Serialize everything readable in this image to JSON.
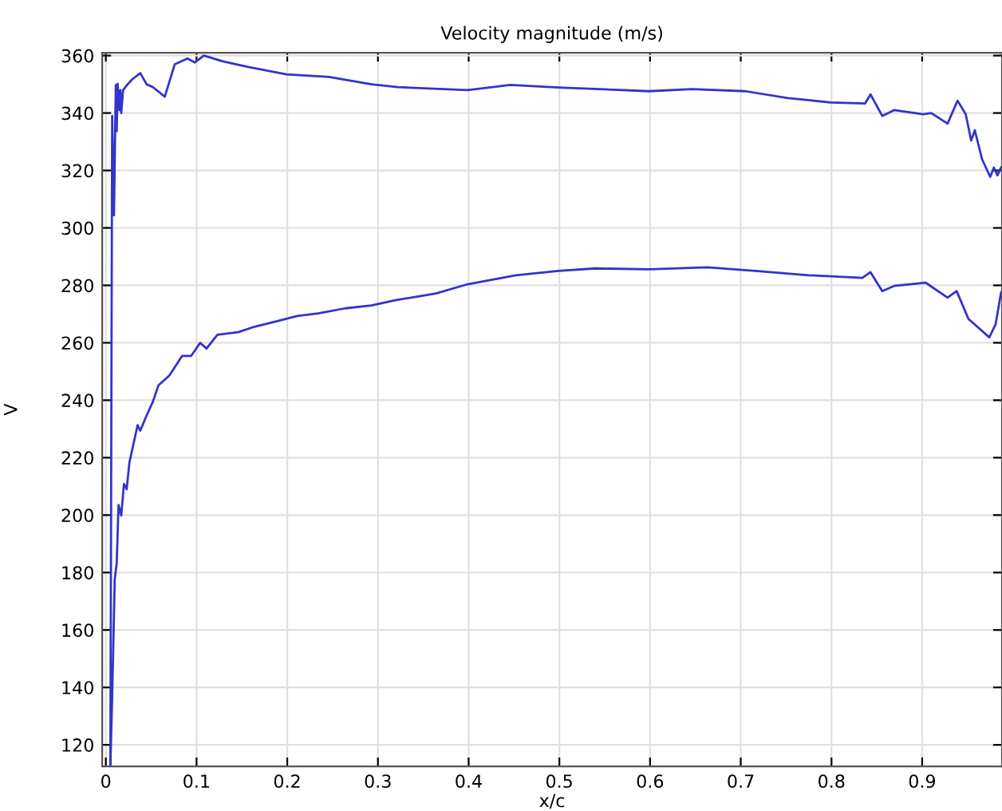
{
  "chart_data": {
    "type": "line",
    "title": "Velocity magnitude (m/s)",
    "xlabel": "x/c",
    "ylabel": "V",
    "xlim": [
      -0.004,
      0.988
    ],
    "ylim": [
      112.5,
      361
    ],
    "xticks": [
      0,
      0.1,
      0.2,
      0.3,
      0.4,
      0.5,
      0.6,
      0.7,
      0.8,
      0.9
    ],
    "yticks": [
      120,
      140,
      160,
      180,
      200,
      220,
      240,
      260,
      280,
      300,
      320,
      340,
      360
    ],
    "grid": true,
    "line_style": "solid",
    "marker": "none",
    "series": [
      {
        "color": "#3333cc",
        "x": [
          0.005,
          0.007,
          0.009,
          0.011,
          0.012,
          0.013,
          0.015,
          0.016,
          0.017,
          0.019,
          0.024,
          0.029,
          0.038,
          0.045,
          0.052,
          0.065,
          0.076,
          0.09,
          0.098,
          0.108,
          0.129,
          0.158,
          0.199,
          0.246,
          0.293,
          0.322,
          0.399,
          0.446,
          0.499,
          0.599,
          0.646,
          0.705,
          0.752,
          0.799,
          0.837,
          0.843,
          0.856,
          0.869,
          0.901,
          0.91,
          0.928,
          0.939,
          0.948,
          0.954,
          0.958,
          0.966,
          0.975,
          0.979,
          0.983,
          0.987
        ],
        "values": [
          112.5,
          339,
          304.4,
          349.8,
          333.7,
          350.2,
          341,
          348,
          340,
          348,
          350,
          351.7,
          353.9,
          350,
          349,
          345.7,
          357,
          359,
          357.6,
          360,
          358,
          356,
          353.5,
          352.6,
          350,
          349,
          348,
          349.8,
          348.9,
          347.6,
          348.3,
          347.6,
          345.2,
          343.7,
          343.3,
          346.5,
          339,
          341,
          339.6,
          340,
          336.3,
          344.3,
          339.6,
          330.4,
          334,
          323.9,
          317.8,
          321,
          318.3,
          321
        ]
      },
      {
        "color": "#3333cc",
        "x": [
          0.005,
          0.007,
          0.0098,
          0.012,
          0.014,
          0.017,
          0.02,
          0.023,
          0.026,
          0.035,
          0.038,
          0.044,
          0.052,
          0.058,
          0.07,
          0.084,
          0.094,
          0.104,
          0.111,
          0.123,
          0.146,
          0.164,
          0.187,
          0.211,
          0.234,
          0.264,
          0.293,
          0.319,
          0.364,
          0.399,
          0.452,
          0.499,
          0.54,
          0.599,
          0.663,
          0.716,
          0.775,
          0.834,
          0.843,
          0.856,
          0.869,
          0.904,
          0.928,
          0.938,
          0.951,
          0.974,
          0.981,
          0.987
        ],
        "values": [
          112.5,
          136.9,
          177.6,
          183.3,
          203.5,
          199.8,
          210.9,
          209,
          218.3,
          231.3,
          229.4,
          234,
          239.6,
          245.2,
          248.6,
          255.4,
          255.4,
          260,
          258,
          262.8,
          263.7,
          265.6,
          267.4,
          269.3,
          270.2,
          272,
          273,
          274.8,
          277.2,
          280.4,
          283.5,
          285,
          285.9,
          285.6,
          286.3,
          285,
          283.5,
          282.6,
          284.6,
          278,
          279.8,
          280.9,
          275.7,
          278,
          268.3,
          261.9,
          266.5,
          277.6
        ]
      }
    ]
  }
}
